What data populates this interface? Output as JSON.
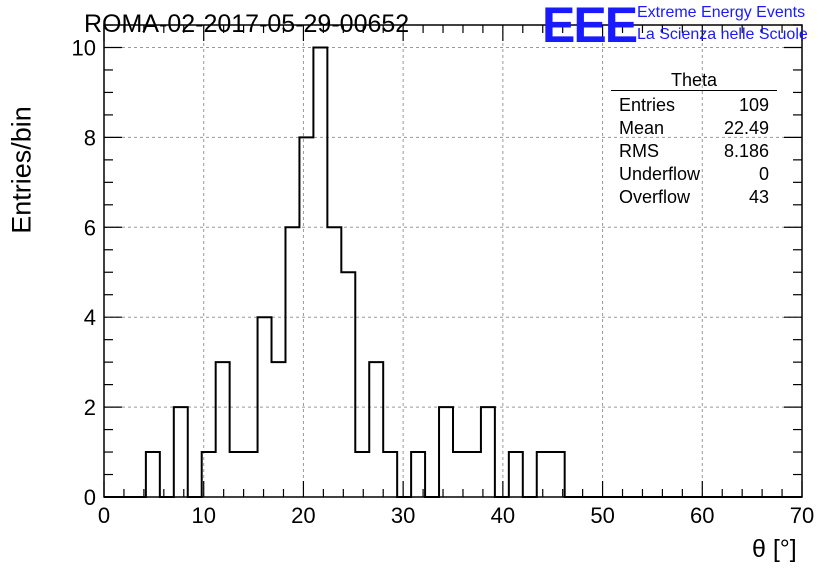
{
  "header": {
    "title": "ROMA-02-2017-05-29-00652",
    "logo": "EEE",
    "org_line1": "Extreme Energy Events",
    "org_line2": "La Scienza nelle Scuole"
  },
  "chart_data": {
    "type": "bar",
    "subtype": "step-histogram",
    "xlabel": "θ [°]",
    "ylabel": "Entries/bin",
    "xlim": [
      0,
      70
    ],
    "ylim": [
      0,
      10.5
    ],
    "xticks": [
      "0",
      "10",
      "20",
      "30",
      "40",
      "50",
      "60",
      "70"
    ],
    "yticks": [
      "0",
      "2",
      "4",
      "6",
      "8",
      "10"
    ],
    "grid": true,
    "bin_width": 1.4,
    "bin_edges_start": 0,
    "values": [
      0,
      0,
      0,
      1,
      0,
      2,
      0,
      1,
      3,
      1,
      1,
      4,
      3,
      6,
      8,
      10,
      6,
      5,
      1,
      3,
      1,
      0,
      1,
      0,
      2,
      1,
      1,
      2,
      0,
      1,
      0,
      1,
      1,
      0,
      0,
      0,
      0,
      0,
      0,
      0,
      0,
      0,
      0,
      0,
      0,
      0,
      0,
      0,
      0,
      0
    ],
    "stats": {
      "title": "Theta",
      "rows": [
        {
          "label": "Entries",
          "value": "109"
        },
        {
          "label": "Mean",
          "value": "22.49"
        },
        {
          "label": "RMS",
          "value": "8.186"
        },
        {
          "label": "Underflow",
          "value": "0"
        },
        {
          "label": "Overflow",
          "value": "43"
        }
      ]
    }
  }
}
